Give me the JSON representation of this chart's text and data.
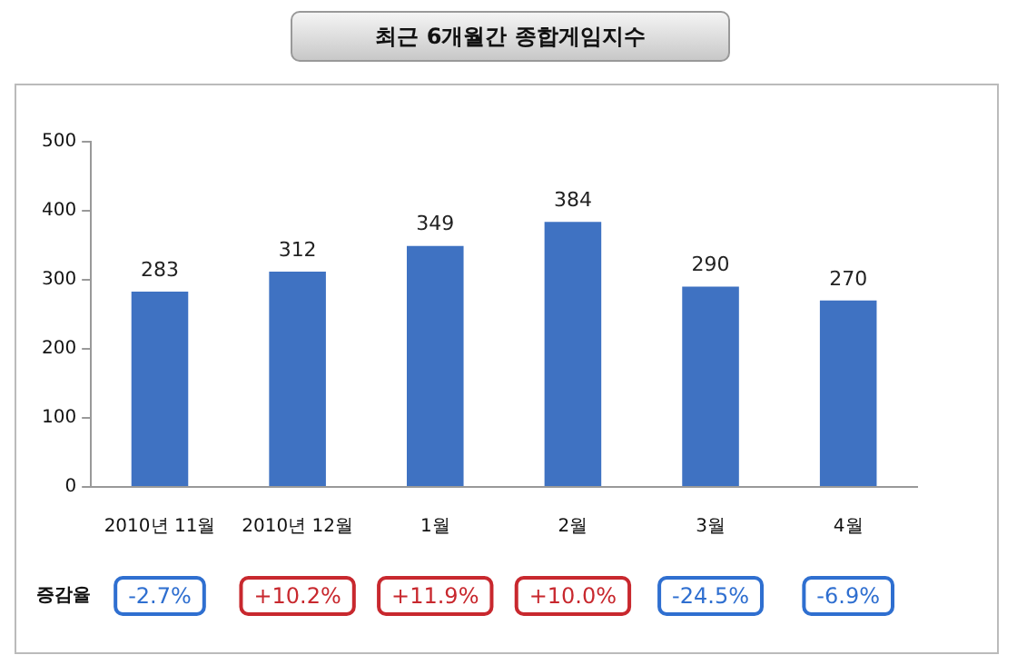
{
  "chart_data": {
    "type": "bar",
    "title": "최근 6개월간 종합게임지수",
    "categories": [
      "2010년 11월",
      "2010년 12월",
      "1월",
      "2월",
      "3월",
      "4월"
    ],
    "values": [
      283,
      312,
      349,
      384,
      290,
      270
    ],
    "color": "#3f72c2",
    "ylim": [
      0,
      500
    ],
    "yticks": [
      0,
      100,
      200,
      300,
      400,
      500
    ],
    "grid": false,
    "legend": false,
    "data_labels": true,
    "annotations": [
      "증감율",
      "-2.7%",
      "+10.2%",
      "+11.9%",
      "+10.0%",
      "-24.5%",
      "-6.9%"
    ]
  }
}
